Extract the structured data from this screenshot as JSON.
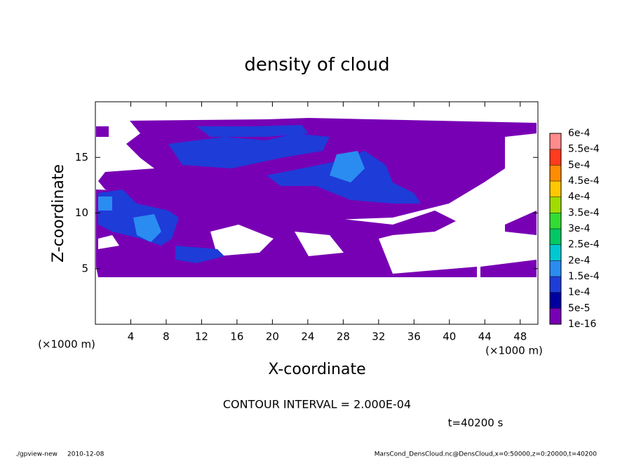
{
  "chart_data": {
    "type": "contour",
    "title": "density of cloud",
    "xlabel": "X-coordinate",
    "ylabel": "Z-coordinate",
    "xunit": "(×1000 m)",
    "yunit": "(×1000 m)",
    "xlim": [
      0,
      50
    ],
    "xticks": [
      4,
      8,
      12,
      16,
      20,
      24,
      28,
      32,
      36,
      40,
      44,
      48
    ],
    "ylim": [
      0,
      20
    ],
    "yticks": [
      5,
      10,
      15
    ],
    "levels": [
      {
        "value": 1e-16,
        "label": "1e-16"
      },
      {
        "value": 5e-05,
        "label": "5e-5"
      },
      {
        "value": 0.0001,
        "label": "1e-4"
      },
      {
        "value": 0.00015,
        "label": "1.5e-4"
      },
      {
        "value": 0.0002,
        "label": "2e-4"
      },
      {
        "value": 0.00025,
        "label": "2.5e-4"
      },
      {
        "value": 0.0003,
        "label": "3e-4"
      },
      {
        "value": 0.00035,
        "label": "3.5e-4"
      },
      {
        "value": 0.0004,
        "label": "4e-4"
      },
      {
        "value": 0.00045,
        "label": "4.5e-4"
      },
      {
        "value": 0.0005,
        "label": "5e-4"
      },
      {
        "value": 0.00055,
        "label": "5.5e-4"
      },
      {
        "value": 0.0006,
        "label": "6e-4"
      }
    ],
    "level_colors": [
      "#7800b4",
      "#0000a0",
      "#1e3cd8",
      "#2a8cf0",
      "#00c8d2",
      "#00c864",
      "#32dc32",
      "#a0dc00",
      "#ffc800",
      "#ff8c00",
      "#ff3c1e",
      "#ff8c8c"
    ],
    "annotations": [
      "CONTOUR INTERVAL = 2.000E-04",
      "t=40200 s"
    ],
    "footer": [
      "./gpview-new",
      "2010-12-08",
      "MarsCond_DensCloud.nc@DensCloud,x=0:50000,z=0:20000,t=40200"
    ]
  }
}
